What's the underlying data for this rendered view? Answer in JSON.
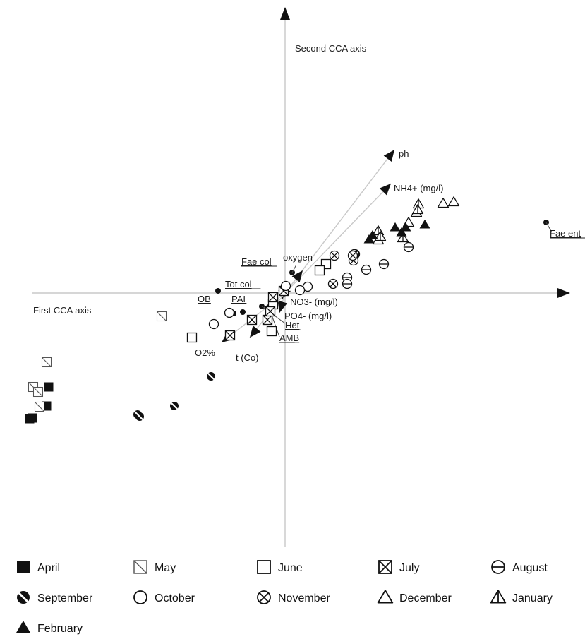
{
  "chart_data": {
    "type": "scatter",
    "title": "",
    "xlabel": "First CCA axis",
    "ylabel": "Second CCA axis",
    "xlim": [
      -4.0,
      4.5
    ],
    "ylim": [
      -4.0,
      4.2
    ],
    "grid": false,
    "legend_position": "bottom",
    "series": [
      {
        "name": "April",
        "marker": "square-filled",
        "points": [
          [
            -3.35,
            -1.33
          ],
          [
            -3.58,
            -1.77
          ],
          [
            -3.38,
            -1.6
          ],
          [
            -3.62,
            -1.78
          ]
        ]
      },
      {
        "name": "May",
        "marker": "square-slash",
        "points": [
          [
            -1.75,
            -0.33
          ],
          [
            -3.38,
            -0.98
          ],
          [
            -3.57,
            -1.33
          ],
          [
            -3.5,
            -1.4
          ],
          [
            -3.48,
            -1.61
          ]
        ]
      },
      {
        "name": "June",
        "marker": "square-open",
        "points": [
          [
            0.58,
            0.41
          ],
          [
            0.49,
            0.32
          ],
          [
            -1.32,
            -0.63
          ],
          [
            -0.19,
            -0.54
          ],
          [
            -0.17,
            -0.16
          ]
        ]
      },
      {
        "name": "July",
        "marker": "square-cross",
        "points": [
          [
            -0.25,
            -0.38
          ],
          [
            -0.78,
            -0.6
          ],
          [
            -0.47,
            -0.38
          ],
          [
            -0.17,
            -0.06
          ],
          [
            -0.02,
            0.03
          ],
          [
            -0.21,
            -0.26
          ]
        ]
      },
      {
        "name": "August",
        "marker": "circle-bar",
        "points": [
          [
            1.15,
            0.33
          ],
          [
            1.4,
            0.41
          ],
          [
            0.88,
            0.22
          ],
          [
            1.75,
            0.65
          ],
          [
            0.99,
            0.55
          ],
          [
            0.88,
            0.13
          ]
        ]
      },
      {
        "name": "September",
        "marker": "circle-slash",
        "points": [
          [
            -1.05,
            -1.18
          ],
          [
            -2.09,
            -1.72
          ],
          [
            -1.57,
            -1.6
          ],
          [
            -2.06,
            -1.75
          ]
        ]
      },
      {
        "name": "October",
        "marker": "circle-open",
        "points": [
          [
            -1.01,
            -0.44
          ],
          [
            -0.79,
            -0.28
          ],
          [
            0.32,
            0.09
          ],
          [
            0.21,
            0.04
          ],
          [
            0.01,
            0.1
          ]
        ]
      },
      {
        "name": "November",
        "marker": "circle-cross",
        "points": [
          [
            0.98,
            0.55
          ],
          [
            0.97,
            0.46
          ],
          [
            0.68,
            0.13
          ],
          [
            0.96,
            0.53
          ],
          [
            0.7,
            0.53
          ]
        ]
      },
      {
        "name": "December",
        "marker": "triangle-open",
        "points": [
          [
            1.75,
            1.0
          ],
          [
            2.24,
            1.27
          ],
          [
            2.39,
            1.29
          ],
          [
            1.86,
            1.14
          ],
          [
            1.32,
            0.75
          ]
        ]
      },
      {
        "name": "January",
        "marker": "triangle-bar",
        "points": [
          [
            1.89,
            1.26
          ],
          [
            1.88,
            1.18
          ],
          [
            1.32,
            0.88
          ],
          [
            1.67,
            0.78
          ],
          [
            1.35,
            0.8
          ]
        ]
      },
      {
        "name": "February",
        "marker": "triangle-filled",
        "points": [
          [
            1.98,
            0.97
          ],
          [
            1.71,
            0.93
          ],
          [
            1.56,
            0.93
          ],
          [
            1.19,
            0.76
          ],
          [
            1.65,
            0.86
          ],
          [
            1.24,
            0.82
          ]
        ]
      }
    ],
    "environment_vectors": [
      {
        "label": "ph",
        "end": [
          1.55,
          2.03
        ]
      },
      {
        "label": "NH4+ (mg/l)",
        "end": [
          1.5,
          1.55
        ]
      },
      {
        "label": "oxygen",
        "end": [
          0.25,
          0.32
        ]
      },
      {
        "label": "NO3- (mg/l)",
        "end": [
          0.08,
          0.03
        ]
      },
      {
        "label": "PO4- (mg/l)",
        "end": [
          -0.08,
          -0.28
        ]
      },
      {
        "label": "O2%",
        "end": [
          -0.9,
          -0.7
        ]
      },
      {
        "label": "t (Co)",
        "end": [
          -0.5,
          -0.63
        ]
      }
    ],
    "species_points": [
      {
        "label": "Fae ent",
        "underline": true,
        "point": [
          3.7,
          1.0
        ],
        "label_at": [
          3.75,
          0.8
        ],
        "label_anchor": "start",
        "leader": [
          3.78,
          0.86
        ]
      },
      {
        "label": "Fae col",
        "underline": true,
        "point": [
          0.1,
          0.29
        ],
        "label_at": [
          -0.62,
          0.4
        ],
        "label_anchor": "start",
        "leader": [
          0.16,
          0.4
        ]
      },
      {
        "label": "Tot col",
        "underline": true,
        "point": [
          -0.95,
          0.03
        ],
        "label_at": [
          -0.85,
          0.08
        ],
        "label_anchor": "start",
        "leader": null
      },
      {
        "label": "OB",
        "underline": true,
        "point": [
          -0.73,
          -0.29
        ],
        "label_at": [
          -1.24,
          -0.13
        ],
        "label_anchor": "start",
        "leader": null
      },
      {
        "label": "PAI",
        "underline": true,
        "point": [
          -0.6,
          -0.27
        ],
        "label_at": [
          -0.76,
          -0.13
        ],
        "label_anchor": "start",
        "leader": null
      },
      {
        "label": "Het",
        "underline": true,
        "point": [
          -0.33,
          -0.19
        ],
        "label_at": [
          0.0,
          -0.5
        ],
        "label_anchor": "start",
        "leader": [
          0.0,
          -0.43
        ]
      },
      {
        "label": "AMB",
        "underline": true,
        "point": [
          -0.23,
          -0.2
        ],
        "label_at": [
          -0.08,
          -0.68
        ],
        "label_anchor": "start",
        "leader": [
          -0.08,
          -0.62
        ]
      }
    ]
  },
  "legend": [
    {
      "label": "April",
      "marker": "square-filled"
    },
    {
      "label": "May",
      "marker": "square-slash"
    },
    {
      "label": "June",
      "marker": "square-open"
    },
    {
      "label": "July",
      "marker": "square-cross"
    },
    {
      "label": "August",
      "marker": "circle-bar"
    },
    {
      "label": "September",
      "marker": "circle-slash"
    },
    {
      "label": "October",
      "marker": "circle-open"
    },
    {
      "label": "November",
      "marker": "circle-cross"
    },
    {
      "label": "December",
      "marker": "triangle-open"
    },
    {
      "label": "January",
      "marker": "triangle-bar"
    },
    {
      "label": "February",
      "marker": "triangle-filled"
    }
  ],
  "colors": {
    "axis": "#bdbdbd",
    "vector": "#c8c8c8",
    "ink": "#111111"
  }
}
